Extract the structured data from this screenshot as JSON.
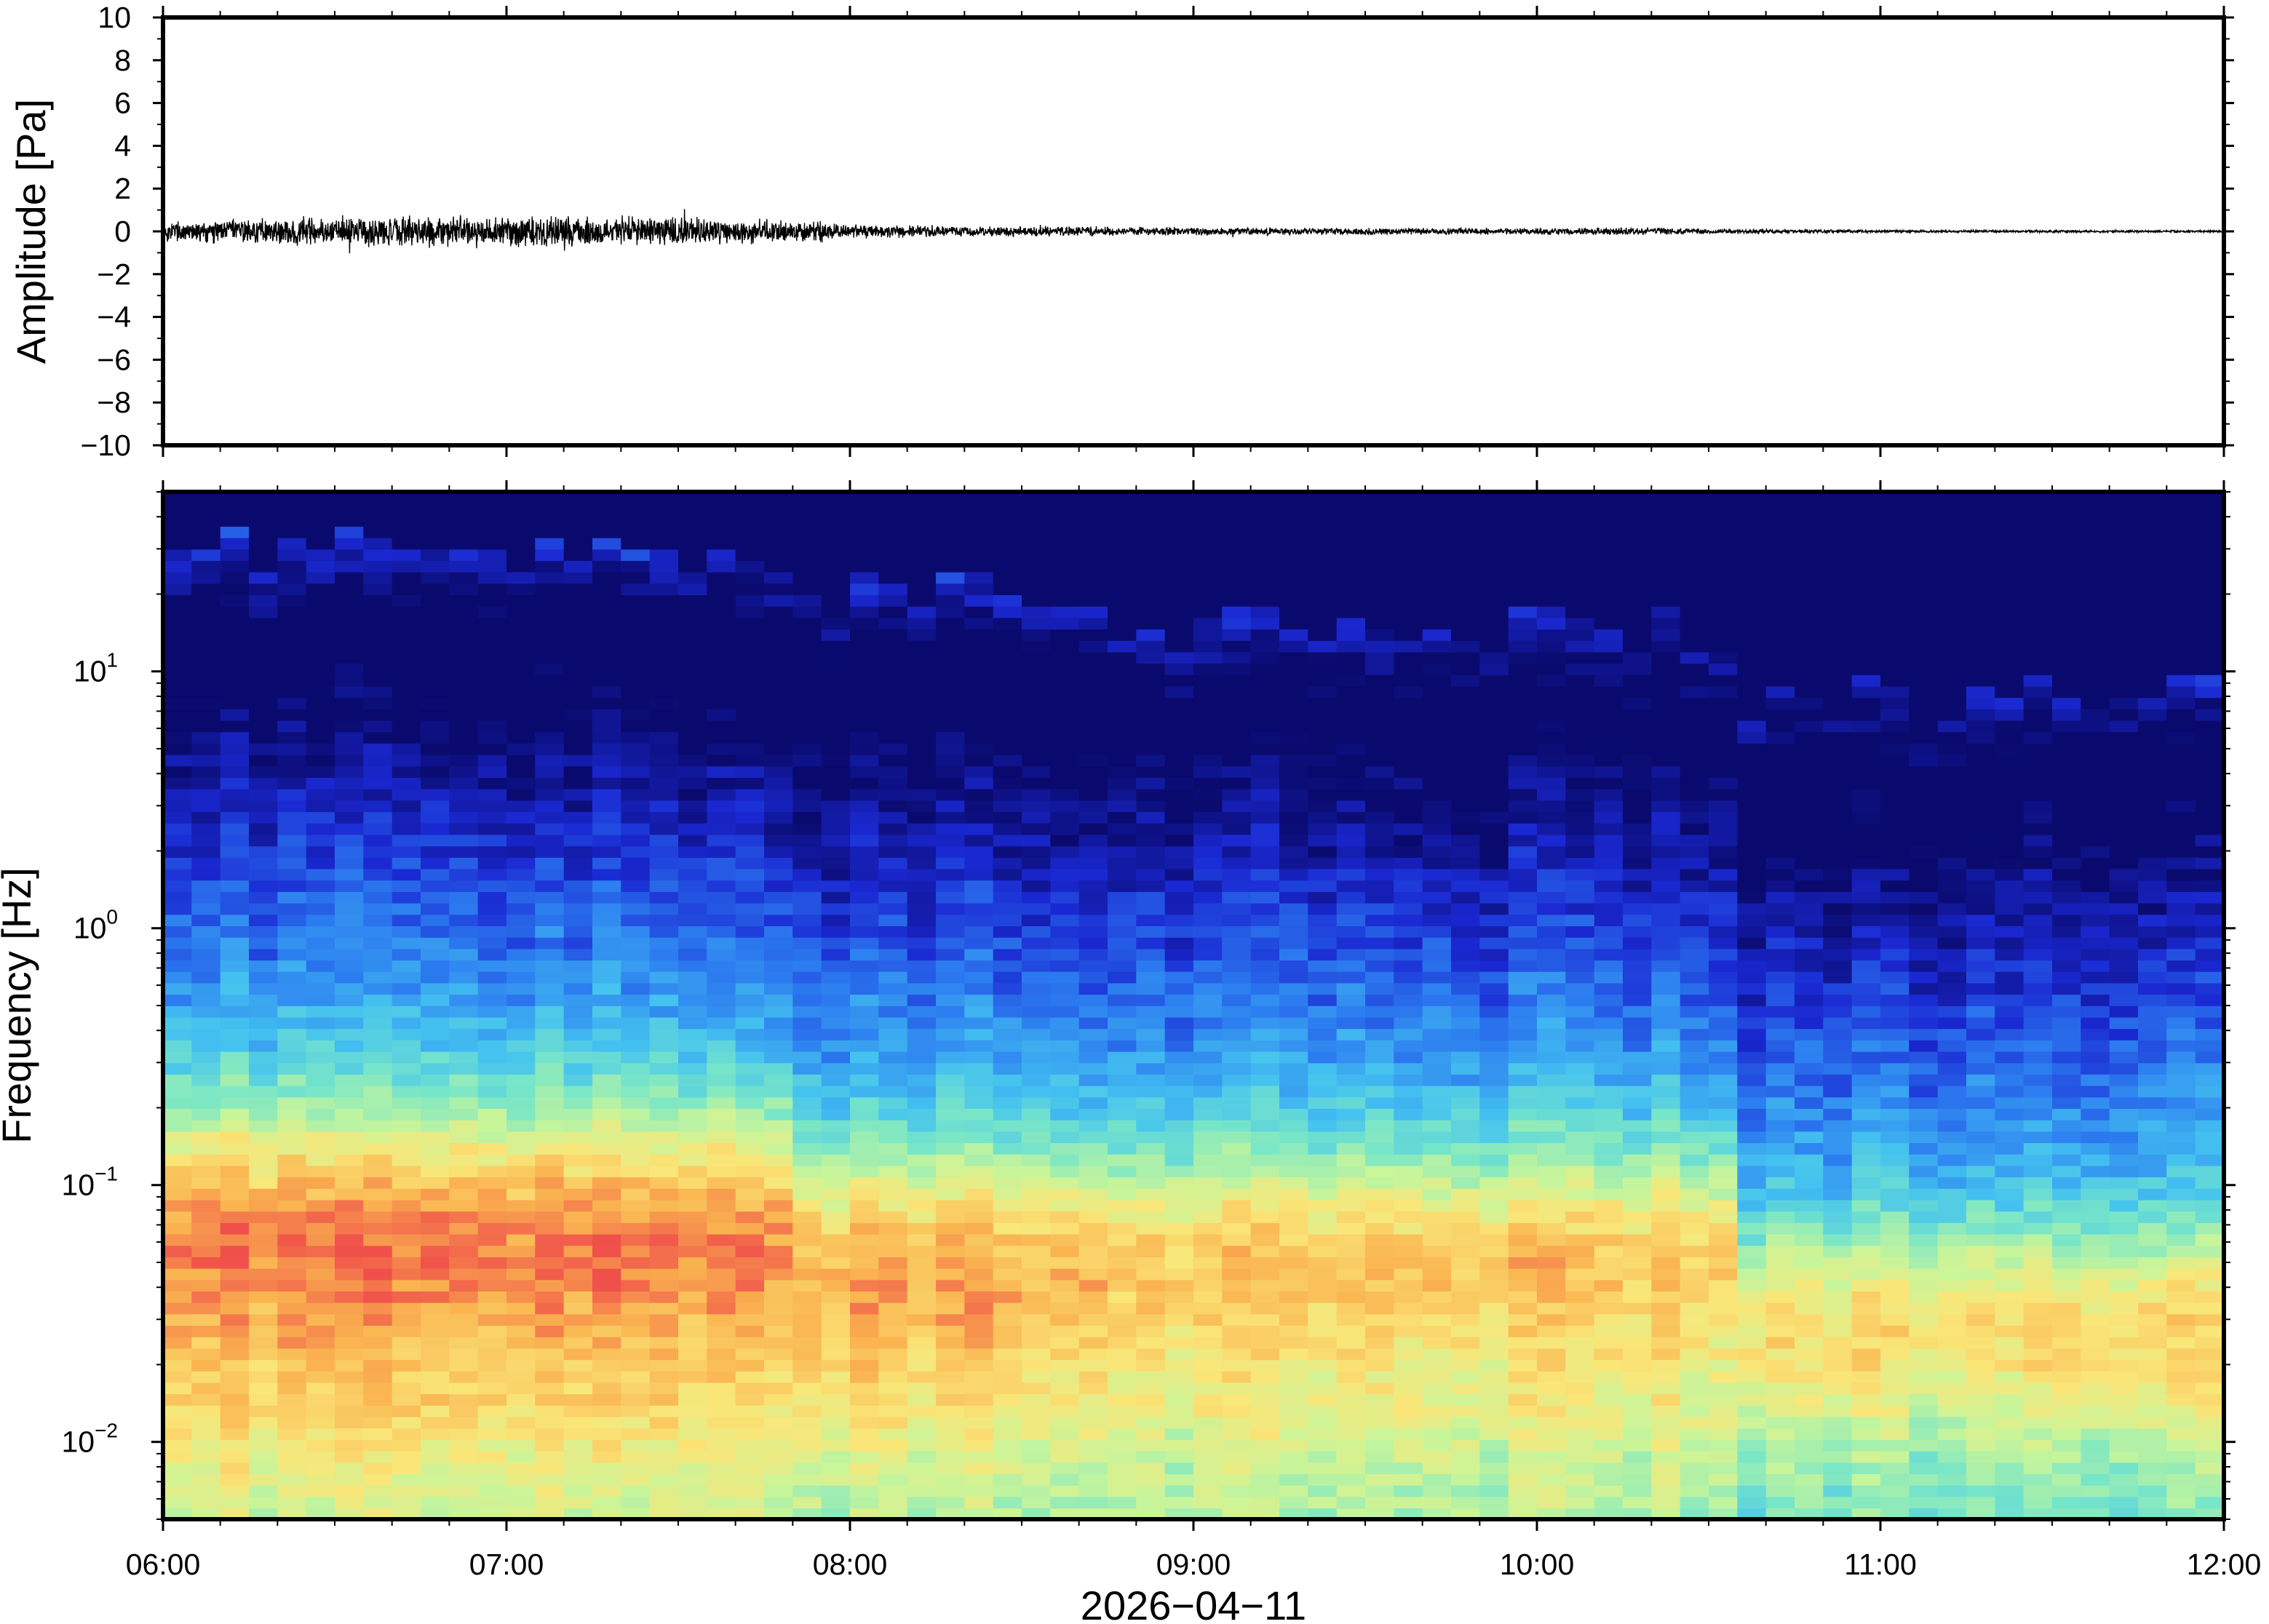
{
  "chart_data": [
    {
      "type": "line",
      "panel": "waveform",
      "ylabel": "Amplitude [Pa]",
      "ylim": [
        -10,
        10
      ],
      "yticks": [
        10,
        8,
        6,
        4,
        2,
        0,
        -2,
        -4,
        -6,
        -8,
        -10
      ],
      "ytick_labels": [
        "10",
        "8",
        "6",
        "4",
        "2",
        "0",
        "−2",
        "−4",
        "−6",
        "−8",
        "−10"
      ],
      "x_range": [
        "06:00",
        "12:00"
      ],
      "envelope": {
        "hours": [
          6.0,
          6.5,
          7.0,
          7.5,
          7.9,
          8.0,
          8.5,
          9.0,
          9.5,
          10.0,
          10.3,
          10.5,
          11.0,
          11.5,
          12.0
        ],
        "amplitude": [
          0.4,
          0.55,
          0.6,
          0.55,
          0.4,
          0.25,
          0.2,
          0.15,
          0.13,
          0.12,
          0.15,
          0.1,
          0.05,
          0.05,
          0.04
        ]
      },
      "color": "#000000"
    },
    {
      "type": "heatmap",
      "panel": "spectrogram",
      "ylabel": "Frequency [Hz]",
      "yscale": "log",
      "ylim": [
        0.005,
        50
      ],
      "yticks": [
        {
          "base": "10",
          "exp": "1"
        },
        {
          "base": "10",
          "exp": "0"
        },
        {
          "base": "10",
          "exp": "−1"
        },
        {
          "base": "10",
          "exp": "−2"
        }
      ],
      "xlabel": "2026−04−11",
      "xtick_labels": [
        "06:00",
        "07:00",
        "08:00",
        "09:00",
        "10:00",
        "11:00",
        "12:00"
      ],
      "colormap": [
        "#0a0a6e",
        "#1a28d2",
        "#2c7cf0",
        "#44c2f0",
        "#78e6c8",
        "#c8f59a",
        "#fae678",
        "#fab450",
        "#f0504a"
      ],
      "regimes": [
        {
          "hours": [
            6.0,
            7.87
          ],
          "energy_top_hz": 30,
          "peak_band_hz": [
            0.03,
            0.15
          ],
          "peak_level": "high"
        },
        {
          "hours": [
            7.87,
            8.75
          ],
          "energy_top_hz": 20,
          "peak_band_hz": [
            0.025,
            0.1
          ],
          "peak_level": "moderate-high"
        },
        {
          "hours": [
            8.75,
            10.55
          ],
          "energy_top_hz": 15,
          "peak_band_hz": [
            0.03,
            0.1
          ],
          "peak_level": "moderate"
        },
        {
          "hours": [
            10.55,
            12.0
          ],
          "energy_top_hz": 8,
          "peak_band_hz": [
            0.02,
            0.05
          ],
          "peak_level": "low"
        }
      ]
    }
  ]
}
